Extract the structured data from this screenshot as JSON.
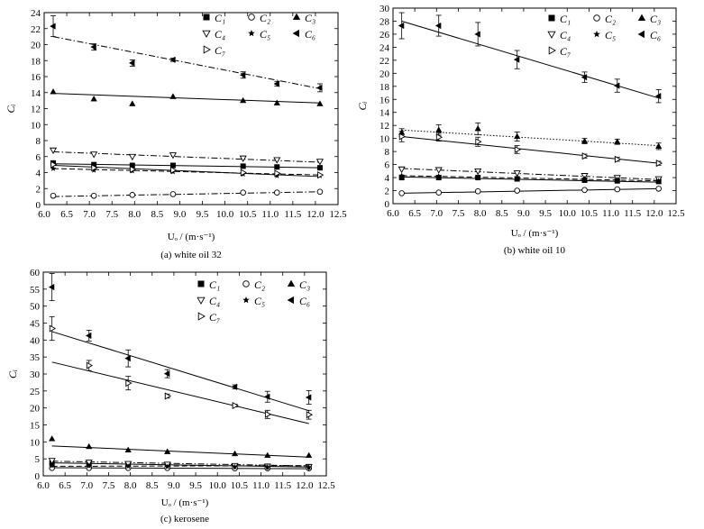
{
  "figure": {
    "x_axis_label": "Uₒ / (m·s⁻¹)",
    "y_axis_label": "Cᵢ"
  },
  "chart_data": [
    {
      "type": "scatter",
      "panel": "a",
      "caption": "(a) white oil 32",
      "xlabel": "Uₒ / (m·s⁻¹)",
      "ylabel": "Cᵢ",
      "xlim": [
        6.0,
        12.5
      ],
      "ylim": [
        0,
        24
      ],
      "xticks": [
        6.0,
        6.5,
        7.0,
        7.5,
        8.0,
        8.5,
        9.0,
        9.5,
        10.0,
        10.5,
        11.0,
        11.5,
        12.0,
        12.5
      ],
      "xtick_labels": [
        "6.0",
        "6.5",
        "7.0",
        "7.5",
        "8.0",
        "8.5",
        "9.0",
        "9.5",
        "10.0",
        "10.5",
        "11.0",
        "11.5",
        "12.0",
        "12.5"
      ],
      "yticks": [
        0,
        2,
        4,
        6,
        8,
        10,
        12,
        14,
        16,
        18,
        20,
        22,
        24
      ],
      "legend_position": "top-right",
      "x": [
        6.2,
        7.1,
        7.95,
        8.85,
        10.4,
        11.15,
        12.1
      ],
      "series": [
        {
          "name": "C₁",
          "marker": "square",
          "values": [
            5.2,
            5.0,
            4.9,
            4.9,
            4.8,
            4.7,
            4.6
          ],
          "fit": [
            5.1,
            4.6
          ],
          "fit_style": "solid"
        },
        {
          "name": "C₂",
          "marker": "circle",
          "values": [
            1.1,
            1.1,
            1.2,
            1.3,
            1.5,
            1.5,
            1.6
          ],
          "fit": [
            1.0,
            1.6
          ],
          "fit_style": "dashdot"
        },
        {
          "name": "C₃",
          "marker": "triangle-up",
          "values": [
            14.1,
            13.2,
            12.6,
            13.5,
            13.0,
            12.7,
            12.6
          ],
          "fit": [
            13.9,
            12.7
          ],
          "fit_style": "solid"
        },
        {
          "name": "C₄",
          "marker": "triangle-down",
          "values": [
            6.8,
            6.3,
            6.0,
            6.2,
            5.8,
            5.6,
            5.4
          ],
          "fit": [
            6.6,
            5.3
          ],
          "fit_style": "dashdot"
        },
        {
          "name": "C₅",
          "marker": "star",
          "values": [
            4.5,
            4.3,
            4.2,
            4.1,
            3.8,
            3.6,
            3.6
          ],
          "fit": [
            4.5,
            3.7
          ],
          "fit_style": "dashed"
        },
        {
          "name": "C₆",
          "marker": "triangle-left",
          "values": [
            22.3,
            19.7,
            17.7,
            18.1,
            16.2,
            15.1,
            14.6
          ],
          "errors": [
            1.3,
            0.4,
            0.4,
            0.2,
            0.4,
            0.3,
            0.5
          ],
          "fit": [
            21.0,
            14.5
          ],
          "fit_style": "dashdot"
        },
        {
          "name": "C₇",
          "marker": "triangle-right",
          "values": [
            5.0,
            4.6,
            4.4,
            4.3,
            4.0,
            3.9,
            3.7
          ],
          "fit": [
            4.9,
            3.5
          ],
          "fit_style": "solid"
        }
      ]
    },
    {
      "type": "scatter",
      "panel": "b",
      "caption": "(b) white oil 10",
      "xlabel": "Uₒ / (m·s⁻¹)",
      "ylabel": "Cᵢ",
      "xlim": [
        6.0,
        12.5
      ],
      "ylim": [
        0,
        30
      ],
      "xticks": [
        6.0,
        6.5,
        7.0,
        7.5,
        8.0,
        8.5,
        9.0,
        9.5,
        10.0,
        10.5,
        11.0,
        11.5,
        12.0,
        12.5
      ],
      "xtick_labels": [
        "6.0",
        "6.5",
        "7.0",
        "7.5",
        "8.0",
        "8.5",
        "9.0",
        "9.5",
        "10.0",
        "10.5",
        "11.0",
        "11.5",
        "12.0",
        "12.5"
      ],
      "yticks": [
        0,
        2,
        4,
        6,
        8,
        10,
        12,
        14,
        16,
        18,
        20,
        22,
        24,
        26,
        28,
        30
      ],
      "legend_position": "top-right",
      "x": [
        6.2,
        7.05,
        7.95,
        8.85,
        10.4,
        11.15,
        12.1
      ],
      "series": [
        {
          "name": "C₁",
          "marker": "square",
          "values": [
            4.0,
            4.0,
            4.0,
            3.8,
            3.6,
            3.5,
            3.4
          ],
          "fit": [
            4.1,
            3.3
          ],
          "fit_style": "solid"
        },
        {
          "name": "C₂",
          "marker": "circle",
          "values": [
            1.6,
            1.7,
            1.9,
            2.0,
            2.1,
            2.2,
            2.3
          ],
          "fit": [
            1.6,
            2.3
          ],
          "fit_style": "solid"
        },
        {
          "name": "C₃",
          "marker": "triangle-up",
          "values": [
            10.9,
            11.3,
            11.5,
            10.3,
            9.6,
            9.5,
            8.8
          ],
          "errors": [
            0.6,
            0.8,
            0.9,
            0.7,
            0.4,
            0.4,
            0.5
          ],
          "fit": [
            11.3,
            8.9
          ],
          "fit_style": "dotted"
        },
        {
          "name": "C₄",
          "marker": "triangle-down",
          "values": [
            5.3,
            5.2,
            5.0,
            4.7,
            4.3,
            4.0,
            3.8
          ],
          "fit": [
            5.4,
            3.7
          ],
          "fit_style": "dashdot"
        },
        {
          "name": "C₅",
          "marker": "star",
          "values": [
            4.3,
            4.2,
            4.1,
            4.0,
            3.8,
            3.7,
            3.5
          ],
          "fit": [
            4.3,
            3.5
          ],
          "fit_style": "dashed"
        },
        {
          "name": "C₆",
          "marker": "triangle-left",
          "values": [
            27.3,
            27.3,
            26.0,
            22.1,
            19.4,
            18.1,
            16.5
          ],
          "errors": [
            2.0,
            1.6,
            1.8,
            1.4,
            0.8,
            1.0,
            1.0
          ],
          "fit": [
            28.0,
            16.2
          ],
          "fit_style": "solid"
        },
        {
          "name": "C₇",
          "marker": "triangle-right",
          "values": [
            10.3,
            10.2,
            9.5,
            8.3,
            7.3,
            6.8,
            6.2
          ],
          "errors": [
            0.8,
            0.6,
            0.7,
            0.6,
            0.3,
            0.3,
            0.3
          ],
          "fit": [
            10.3,
            6.2
          ],
          "fit_style": "solid"
        }
      ]
    },
    {
      "type": "scatter",
      "panel": "c",
      "caption": "(c) kerosene",
      "xlabel": "Uₒ / (m·s⁻¹)",
      "ylabel": "Cᵢ",
      "xlim": [
        6.0,
        12.5
      ],
      "ylim": [
        0,
        60
      ],
      "xticks": [
        6.0,
        6.5,
        7.0,
        7.5,
        8.0,
        8.5,
        9.0,
        9.5,
        10.0,
        10.5,
        11.0,
        11.5,
        12.0,
        12.5
      ],
      "xtick_labels": [
        "6.0",
        "6.5",
        "7.0",
        "7.5",
        "8.0",
        "8.5",
        "9.0",
        "9.5",
        "10.0",
        "10.5",
        "11.0",
        "11.5",
        "12.0",
        "12.5"
      ],
      "yticks": [
        0,
        5,
        10,
        15,
        20,
        25,
        30,
        35,
        40,
        45,
        50,
        55,
        60
      ],
      "legend_position": "top-right",
      "x": [
        6.2,
        7.05,
        7.95,
        8.85,
        10.4,
        11.15,
        12.1
      ],
      "series": [
        {
          "name": "C₁",
          "marker": "square",
          "values": [
            3.7,
            3.5,
            3.3,
            3.2,
            2.9,
            2.8,
            2.7
          ],
          "fit": [
            3.8,
            2.6
          ],
          "fit_style": "solid"
        },
        {
          "name": "C₂",
          "marker": "circle",
          "values": [
            2.3,
            2.3,
            2.3,
            2.3,
            2.2,
            2.2,
            2.2
          ],
          "fit": [
            2.4,
            2.1
          ],
          "fit_style": "solid"
        },
        {
          "name": "C₃",
          "marker": "triangle-up",
          "values": [
            10.9,
            8.6,
            7.6,
            7.1,
            6.5,
            6.0,
            6.0
          ],
          "fit": [
            8.8,
            5.5
          ],
          "fit_style": "solid"
        },
        {
          "name": "C₄",
          "marker": "triangle-down",
          "values": [
            4.5,
            4.0,
            3.6,
            3.4,
            3.0,
            2.8,
            2.7
          ],
          "fit": [
            4.3,
            2.9
          ],
          "fit_style": "dashdot"
        },
        {
          "name": "C₅",
          "marker": "star",
          "values": [
            3.0,
            2.9,
            2.8,
            2.7,
            2.6,
            2.5,
            2.5
          ],
          "fit": [
            2.8,
            3.0
          ],
          "fit_style": "dashed"
        },
        {
          "name": "C₆",
          "marker": "triangle-left",
          "values": [
            55.6,
            41.3,
            34.6,
            30.1,
            26.2,
            23.3,
            23.1
          ],
          "errors": [
            4.0,
            1.6,
            2.5,
            1.2,
            0.6,
            1.6,
            2.0
          ],
          "fit": [
            42.5,
            19.2
          ],
          "fit_style": "solid"
        },
        {
          "name": "C₇",
          "marker": "triangle-right",
          "values": [
            43.4,
            32.5,
            27.3,
            23.5,
            20.7,
            18.1,
            18.0
          ],
          "errors": [
            3.5,
            1.5,
            2.0,
            0.6,
            0.4,
            1.2,
            1.3
          ],
          "fit": [
            33.5,
            15.4
          ],
          "fit_style": "solid"
        }
      ]
    }
  ]
}
